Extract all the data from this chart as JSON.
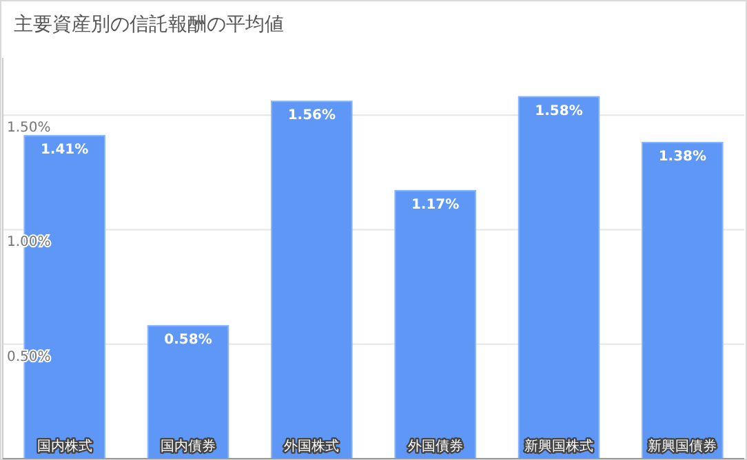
{
  "chart_data": {
    "type": "bar",
    "title": "主要資産別の信託報酬の平均値",
    "categories": [
      "国内株式",
      "国内債券",
      "外国株式",
      "外国債券",
      "新興国株式",
      "新興国債券"
    ],
    "values": [
      1.41,
      0.58,
      1.56,
      1.17,
      1.58,
      1.38
    ],
    "value_labels": [
      "1.41%",
      "0.58%",
      "1.56%",
      "1.17%",
      "1.58%",
      "1.38%"
    ],
    "color": "#5e97f6",
    "ylim": [
      0,
      1.75
    ],
    "yticks": [
      {
        "value": 0.5,
        "label": "0.50%"
      },
      {
        "value": 1,
        "label": "1.00%"
      },
      {
        "value": 1.5,
        "label": "1.50%"
      }
    ],
    "grid": "y"
  }
}
